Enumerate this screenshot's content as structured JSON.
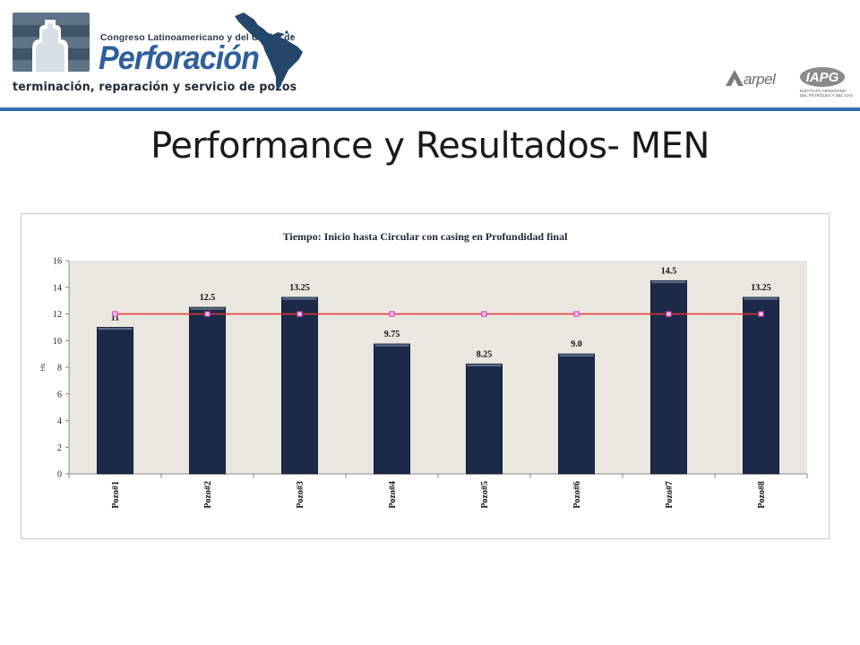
{
  "header": {
    "congreso_text": "Congreso Latinoamericano y del Caribe de",
    "brand_text": "Perforación",
    "tagline": "terminación, reparación y servicio de pozos",
    "arpel_text": "arpel",
    "iapg_text": "IAPG",
    "iapg_subtext": "INSTITUTO ARGENTINO DEL PETRÓLEO Y DEL GAS"
  },
  "slide_title": "Performance y Resultados- MEN",
  "chart_data": {
    "type": "bar",
    "title": "Tiempo: Inicio hasta Circular con casing en Profundidad final",
    "ylabel": "Hs",
    "xlabel": "",
    "ylim": [
      0,
      16
    ],
    "yticks": [
      0,
      2,
      4,
      6,
      8,
      10,
      12,
      14,
      16
    ],
    "categories": [
      "Pozo#1",
      "Pozo#2",
      "Pozo#3",
      "Pozo#4",
      "Pozo#5",
      "Pozo#6",
      "Pozo#7",
      "Pozo#8"
    ],
    "values": [
      11,
      12.5,
      13.25,
      9.75,
      8.25,
      9.0,
      14.5,
      13.25
    ],
    "data_labels": [
      "11",
      "12.5",
      "13.25",
      "9.75",
      "8.25",
      "9.0",
      "14.5",
      "13.25"
    ],
    "reference_line": {
      "values": [
        12,
        12,
        12,
        12,
        12,
        12,
        12,
        12
      ]
    },
    "grid": false,
    "colors": {
      "bar": "#1b2a48",
      "line": "#e0342e",
      "marker": "#e040c8",
      "plot_bg": "#eae7e0"
    }
  }
}
